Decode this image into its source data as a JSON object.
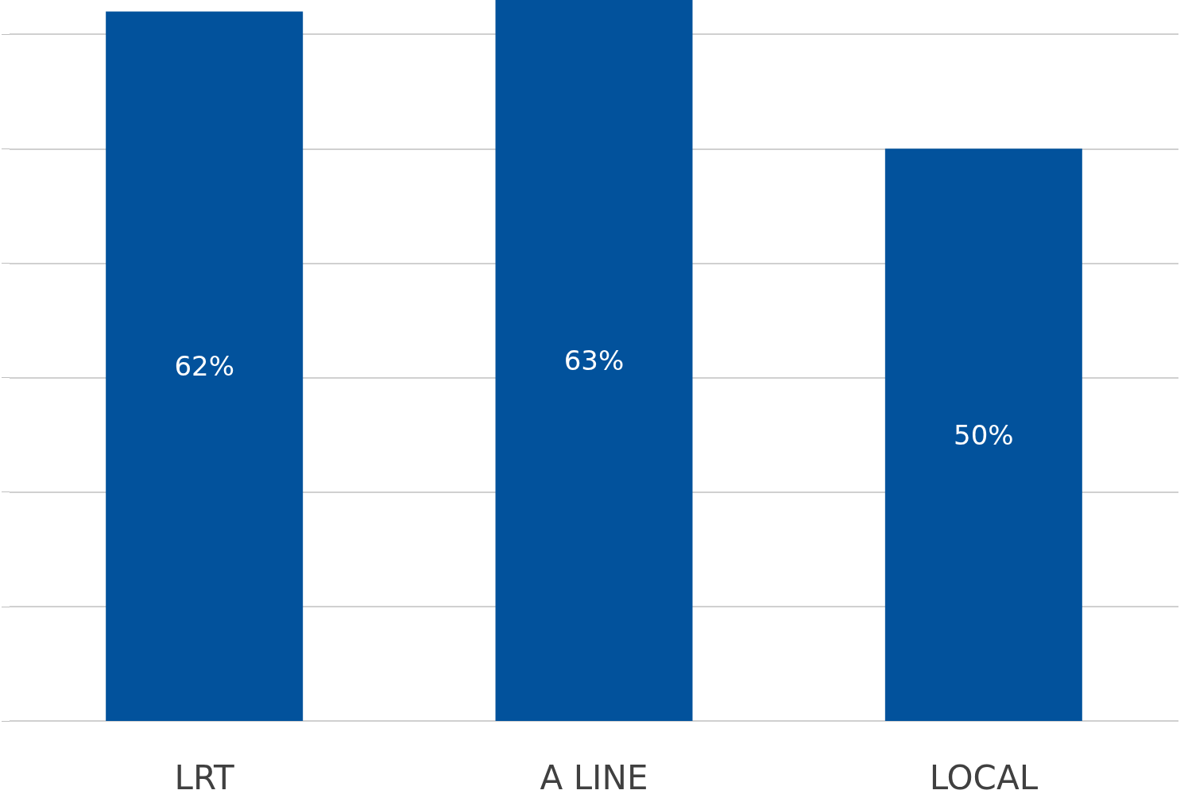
{
  "chart_data": {
    "type": "bar",
    "categories": [
      "LRT",
      "A LINE",
      "LOCAL"
    ],
    "values": [
      62,
      63,
      50
    ],
    "value_labels": [
      "62%",
      "63%",
      "50%"
    ],
    "color": "#02529c",
    "ylim": [
      0,
      63
    ],
    "yticks": [
      {
        "value": 0,
        "label": null
      },
      {
        "value": 10,
        "label": null
      },
      {
        "value": 20,
        "label": null
      },
      {
        "value": 30,
        "label": null
      },
      {
        "value": 40,
        "label": null
      },
      {
        "value": 50,
        "label": null
      },
      {
        "value": 60,
        "label": null
      }
    ],
    "tick_labels": "x",
    "grid": "y"
  }
}
